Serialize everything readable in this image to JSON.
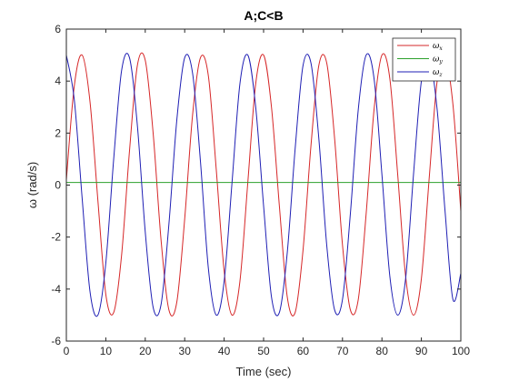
{
  "chart_data": {
    "type": "line",
    "title": "A;C<B",
    "xlabel": "Time (sec)",
    "ylabel": "ω (rad/s)",
    "xlim": [
      0,
      100
    ],
    "ylim": [
      -6,
      6
    ],
    "xticks": [
      0,
      10,
      20,
      30,
      40,
      50,
      60,
      70,
      80,
      90,
      100
    ],
    "yticks": [
      -6,
      -4,
      -2,
      0,
      2,
      4,
      6
    ],
    "grid": false,
    "legend_position": "top-right",
    "series": [
      {
        "name": "ωx",
        "label_base": "ω",
        "label_sub": "x",
        "color": "#d62728",
        "x": [
          0,
          2,
          4,
          6,
          8,
          10,
          12,
          14,
          16,
          18,
          20,
          22,
          24,
          26,
          28,
          30,
          32,
          34,
          36,
          38,
          40,
          42,
          44,
          46,
          48,
          50,
          52,
          54,
          56,
          58,
          60,
          62,
          64,
          66,
          68,
          70,
          72,
          74,
          76,
          78,
          80,
          82,
          84,
          86,
          88,
          90,
          92,
          94,
          96,
          98,
          100
        ],
        "y": [
          0.2,
          3.8,
          5.0,
          3.2,
          -0.6,
          -4.2,
          -4.9,
          -2.7,
          1.3,
          4.6,
          4.8,
          2.0,
          -2.1,
          -4.8,
          -4.5,
          -1.3,
          2.7,
          4.9,
          4.2,
          0.6,
          -3.3,
          -5.0,
          -3.7,
          0.1,
          3.9,
          5.0,
          3.0,
          -0.8,
          -4.3,
          -4.9,
          -2.5,
          1.5,
          4.6,
          4.7,
          1.8,
          -2.3,
          -4.8,
          -4.4,
          -1.1,
          2.9,
          5.0,
          4.1,
          0.4,
          -3.5,
          -5.0,
          -3.6,
          0.3,
          4.0,
          4.9,
          3.1,
          -1.0
        ]
      },
      {
        "name": "ωy",
        "label_base": "ω",
        "label_sub": "y",
        "color": "#2ca02c",
        "x": [
          0,
          100
        ],
        "y": [
          0.1,
          0.1
        ]
      },
      {
        "name": "ωz",
        "label_base": "ω",
        "label_sub": "z",
        "color": "#1f1fb4",
        "x": [
          0,
          2,
          4,
          6,
          8,
          10,
          12,
          14,
          16,
          18,
          20,
          22,
          24,
          26,
          28,
          30,
          32,
          34,
          36,
          38,
          40,
          42,
          44,
          46,
          48,
          50,
          52,
          54,
          56,
          58,
          60,
          62,
          64,
          66,
          68,
          70,
          72,
          74,
          76,
          78,
          80,
          82,
          84,
          86,
          88,
          90,
          92,
          94,
          96,
          98,
          100
        ],
        "y": [
          5.0,
          3.3,
          -0.5,
          -4.1,
          -5.0,
          -3.0,
          1.0,
          4.4,
          4.9,
          2.3,
          -1.8,
          -4.7,
          -4.6,
          -1.5,
          2.5,
          4.9,
          4.3,
          0.9,
          -3.2,
          -5.0,
          -3.7,
          0.1,
          3.9,
          5.0,
          3.0,
          -0.8,
          -4.3,
          -4.9,
          -2.6,
          1.4,
          4.6,
          4.7,
          1.8,
          -2.3,
          -4.8,
          -4.4,
          -1.1,
          2.9,
          5.0,
          4.1,
          0.4,
          -3.5,
          -5.0,
          -3.6,
          0.4,
          4.0,
          4.9,
          2.9,
          -1.0,
          -4.4,
          -3.4
        ]
      }
    ]
  }
}
